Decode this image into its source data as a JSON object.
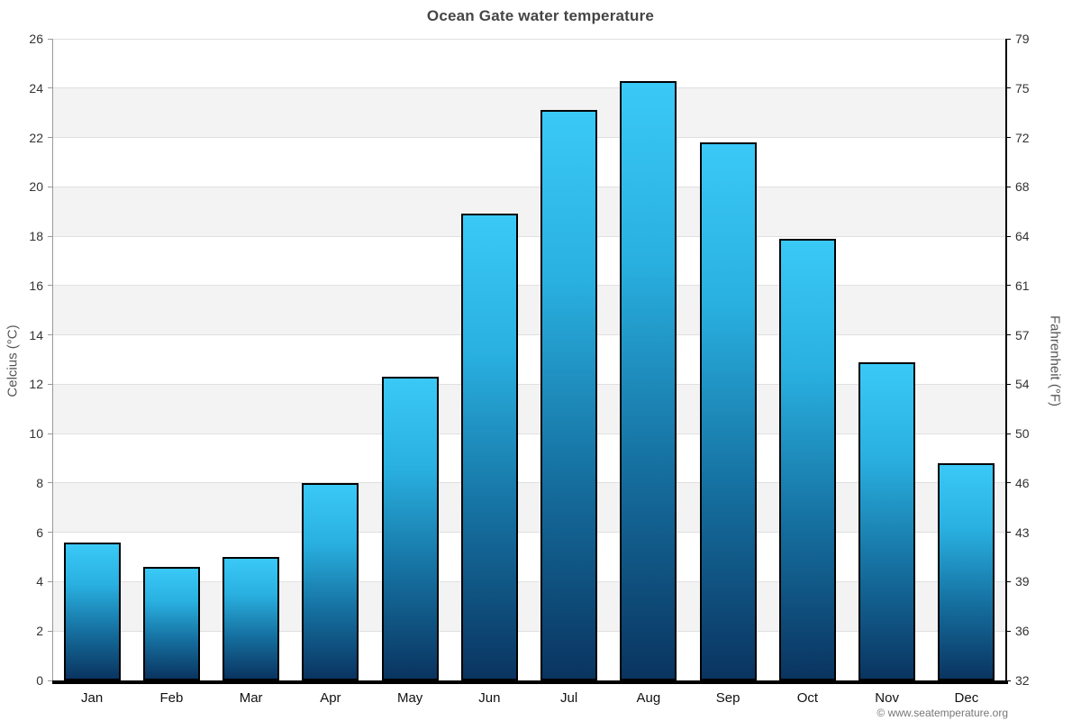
{
  "title": "Ocean Gate water temperature",
  "copyright": "© www.seatemperature.org",
  "chart_data": {
    "type": "bar",
    "title": "Ocean Gate water temperature",
    "categories": [
      "Jan",
      "Feb",
      "Mar",
      "Apr",
      "May",
      "Jun",
      "Jul",
      "Aug",
      "Sep",
      "Oct",
      "Nov",
      "Dec"
    ],
    "values": [
      5.6,
      4.6,
      5.0,
      8.0,
      12.3,
      18.9,
      23.1,
      24.3,
      21.8,
      17.9,
      12.9,
      8.8
    ],
    "unit": "°C",
    "ylabel_left": "Celcius (°C)",
    "ylabel_right": "Fahrenheit (°F)",
    "ylim_left": [
      0,
      26
    ],
    "yticks_left": [
      0,
      2,
      4,
      6,
      8,
      10,
      12,
      14,
      16,
      18,
      20,
      22,
      24,
      26
    ],
    "yticks_right_labels": [
      "32",
      "36",
      "39",
      "43",
      "46",
      "50",
      "54",
      "57",
      "61",
      "64",
      "68",
      "72",
      "75",
      "79"
    ],
    "grid": true,
    "background_bands": "alternating gray every 2°C, gray on 2-4, 6-8, 10-12, 14-16, 18-20, 22-24",
    "legend": "none"
  },
  "colors": {
    "bar_gradient_top": "#3ac9f7",
    "bar_gradient_upper_mid": "#29b0e0",
    "bar_gradient_lower_mid": "#156f9f",
    "bar_gradient_bottom": "#0a3460",
    "bar_border": "#000000",
    "grid_line": "#e0e0e0",
    "band_fill": "#f3f3f3",
    "left_axis_line": "#999999",
    "right_axis_line": "#000000",
    "baseline": "#000000"
  }
}
